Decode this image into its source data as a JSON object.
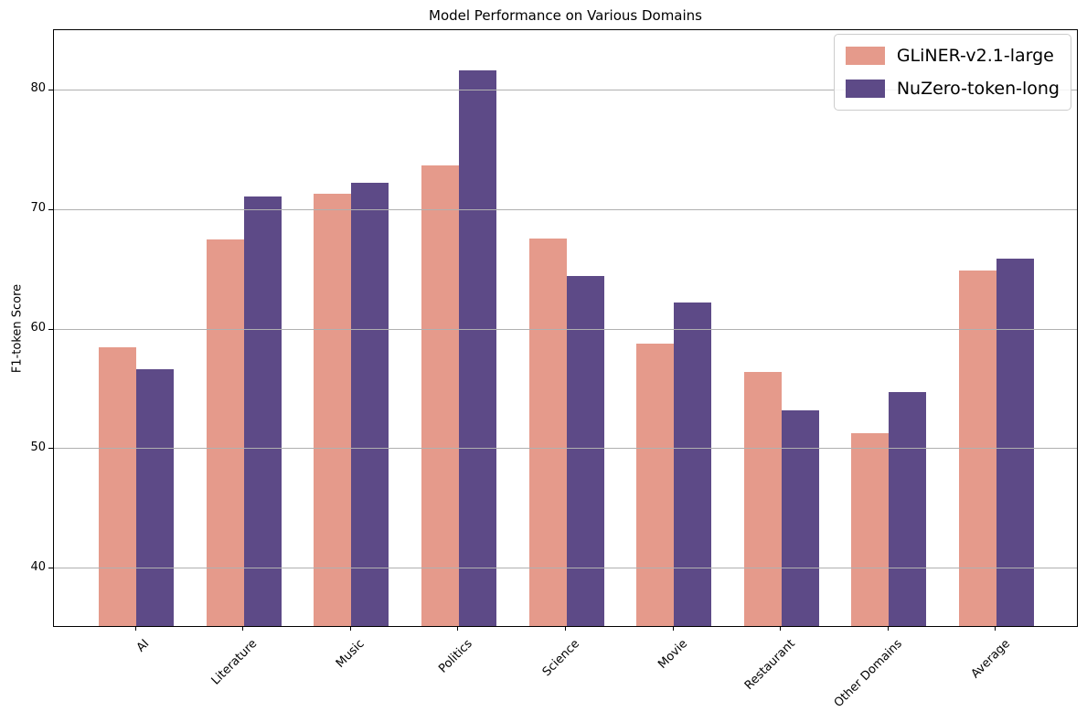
{
  "chart_data": {
    "type": "bar",
    "title": "Model Performance on Various Domains",
    "xlabel": "",
    "ylabel": "F1-token Score",
    "categories": [
      "AI",
      "Literature",
      "Music",
      "Politics",
      "Science",
      "Movie",
      "Restaurant",
      "Other Domains",
      "Average"
    ],
    "series": [
      {
        "name": "GLiNER-v2.1-large",
        "color": "#e59a8b",
        "values": [
          58.5,
          67.5,
          71.3,
          73.7,
          67.6,
          58.8,
          56.4,
          51.3,
          64.9
        ]
      },
      {
        "name": "NuZero-token-long",
        "color": "#5d4a87",
        "values": [
          56.6,
          71.1,
          72.2,
          81.6,
          64.4,
          62.2,
          53.2,
          54.7,
          65.9
        ]
      }
    ],
    "ylim": [
      35,
      85
    ],
    "yticks": [
      40,
      50,
      60,
      70,
      80
    ],
    "grid": true,
    "grid_color": "#b0b0b0",
    "legend_position": "upper right"
  }
}
